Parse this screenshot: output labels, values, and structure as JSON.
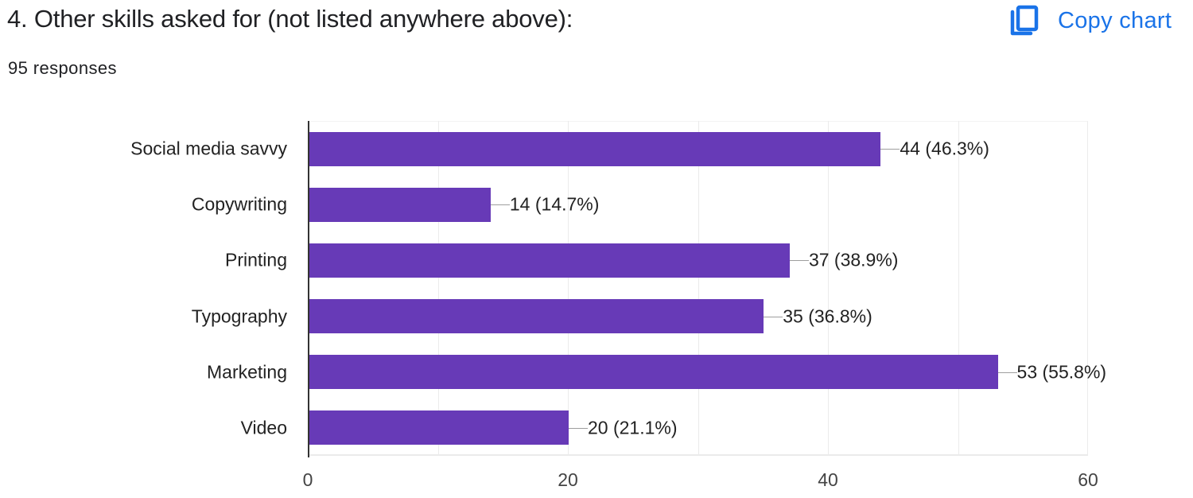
{
  "header": {
    "title": "4. Other skills asked for (not listed anywhere above):",
    "subtitle": "95 responses",
    "copy_button": {
      "label": "Copy chart",
      "icon": "copy-icon",
      "color": "#1a73e8"
    }
  },
  "chart_data": {
    "type": "bar",
    "orientation": "horizontal",
    "title": "4. Other skills asked for (not listed anywhere above):",
    "subtitle": "95 responses",
    "categories": [
      "Social media savvy",
      "Copywriting",
      "Printing",
      "Typography",
      "Marketing",
      "Video"
    ],
    "values": [
      44,
      14,
      37,
      35,
      53,
      20
    ],
    "percentages": [
      46.3,
      14.7,
      38.9,
      36.8,
      55.8,
      21.1
    ],
    "data_labels": [
      "44 (46.3%)",
      "14 (14.7%)",
      "37 (38.9%)",
      "35 (36.8%)",
      "53 (55.8%)",
      "20 (21.1%)"
    ],
    "xlabel": "",
    "ylabel": "",
    "xlim": [
      0,
      60
    ],
    "xticks": [
      "0",
      "20",
      "40",
      "60"
    ],
    "grid": true,
    "bar_color": "#673ab7"
  }
}
